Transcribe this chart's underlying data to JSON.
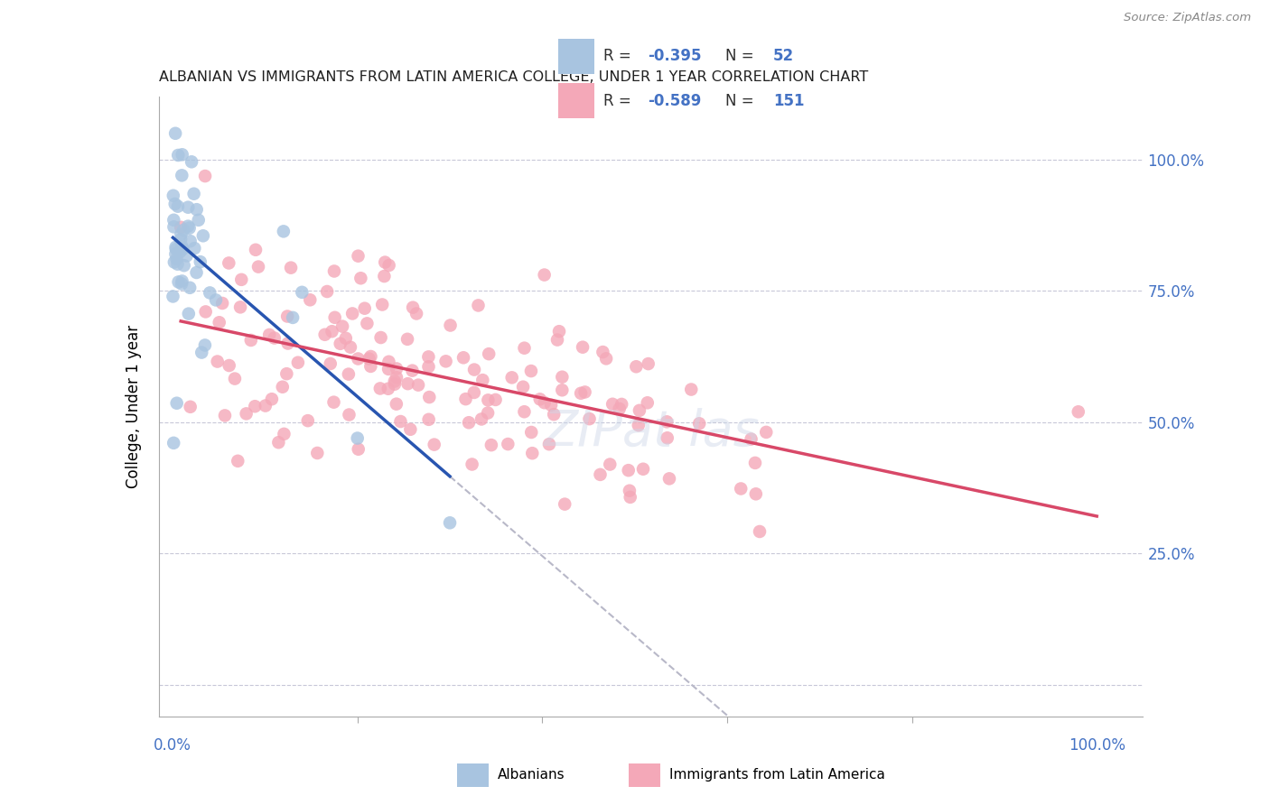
{
  "title": "ALBANIAN VS IMMIGRANTS FROM LATIN AMERICA COLLEGE, UNDER 1 YEAR CORRELATION CHART",
  "source": "Source: ZipAtlas.com",
  "ylabel": "College, Under 1 year",
  "r1": "-0.395",
  "n1": "52",
  "r2": "-0.589",
  "n2": "151",
  "legend_label1": "Albanians",
  "legend_label2": "Immigrants from Latin America",
  "blue_scatter": "#a8c4e0",
  "pink_scatter": "#f4a8b8",
  "blue_line": "#2855b0",
  "pink_line": "#d84868",
  "dash_line": "#b8b8c8",
  "grid_color": "#c8c8d8",
  "axis_label_color": "#4472c4",
  "right_tick_color": "#4472c4",
  "title_color": "#202020",
  "source_color": "#888888",
  "background": "#ffffff"
}
